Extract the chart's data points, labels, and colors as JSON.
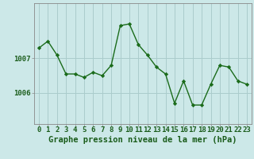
{
  "x": [
    0,
    1,
    2,
    3,
    4,
    5,
    6,
    7,
    8,
    9,
    10,
    11,
    12,
    13,
    14,
    15,
    16,
    17,
    18,
    19,
    20,
    21,
    22,
    23
  ],
  "y": [
    1007.3,
    1007.5,
    1007.1,
    1006.55,
    1006.55,
    1006.45,
    1006.6,
    1006.5,
    1006.8,
    1007.95,
    1008.0,
    1007.4,
    1007.1,
    1006.75,
    1006.55,
    1005.7,
    1006.35,
    1005.65,
    1005.65,
    1006.25,
    1006.8,
    1006.75,
    1006.35,
    1006.25
  ],
  "background_color": "#cce8e8",
  "line_color": "#1a6b1a",
  "marker_color": "#1a6b1a",
  "grid_color": "#aacccc",
  "axis_color": "#888888",
  "text_color": "#1a5c1a",
  "xlabel": "Graphe pression niveau de la mer (hPa)",
  "yticks": [
    1006,
    1007
  ],
  "ylim_min": 1005.1,
  "ylim_max": 1008.6,
  "xlim_min": -0.5,
  "xlim_max": 23.5,
  "label_fontsize": 7.5,
  "tick_fontsize": 6.5
}
